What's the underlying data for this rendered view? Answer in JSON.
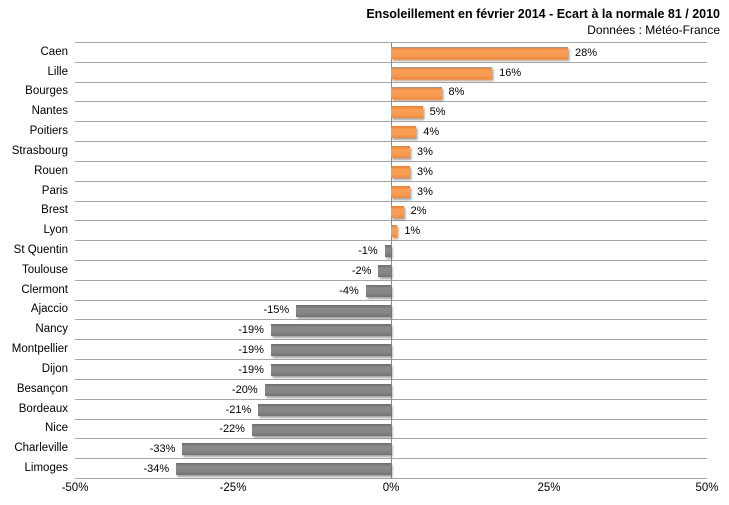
{
  "title": "Ensoleillement en février 2014 - Ecart à la normale 81 / 2010",
  "subtitle": "Données : Météo-France",
  "chart_data": {
    "type": "bar",
    "orientation": "horizontal",
    "title": "Ensoleillement en février 2014 - Ecart à la normale 81 / 2010",
    "subtitle": "Données : Météo-France",
    "categories": [
      "Caen",
      "Lille",
      "Bourges",
      "Nantes",
      "Poitiers",
      "Strasbourg",
      "Rouen",
      "Paris",
      "Brest",
      "Lyon",
      "St Quentin",
      "Toulouse",
      "Clermont",
      "Ajaccio",
      "Nancy",
      "Montpellier",
      "Dijon",
      "Besançon",
      "Bordeaux",
      "Nice",
      "Charleville",
      "Limoges"
    ],
    "values": [
      28,
      16,
      8,
      5,
      4,
      3,
      3,
      3,
      2,
      1,
      -1,
      -2,
      -4,
      -15,
      -19,
      -19,
      -19,
      -20,
      -21,
      -22,
      -33,
      -34
    ],
    "data_labels": [
      "28%",
      "16%",
      "8%",
      "5%",
      "4%",
      "3%",
      "3%",
      "3%",
      "2%",
      "1%",
      "-1%",
      "-2%",
      "-4%",
      "-15%",
      "-19%",
      "-19%",
      "-19%",
      "-20%",
      "-21%",
      "-22%",
      "-33%",
      "-34%"
    ],
    "xlabel": "",
    "ylabel": "",
    "xlim": [
      -50,
      50
    ],
    "x_tick_labels": [
      "-50%",
      "-25%",
      "0%",
      "25%",
      "50%"
    ],
    "x_tick_values": [
      -50,
      -25,
      0,
      25,
      50
    ],
    "grid": "horizontal-rows-with-zero-axis",
    "legend": "none",
    "positive_color": "#F79646",
    "negative_color": "#7F7F7F",
    "gridline_color": "#A6A6A6"
  }
}
